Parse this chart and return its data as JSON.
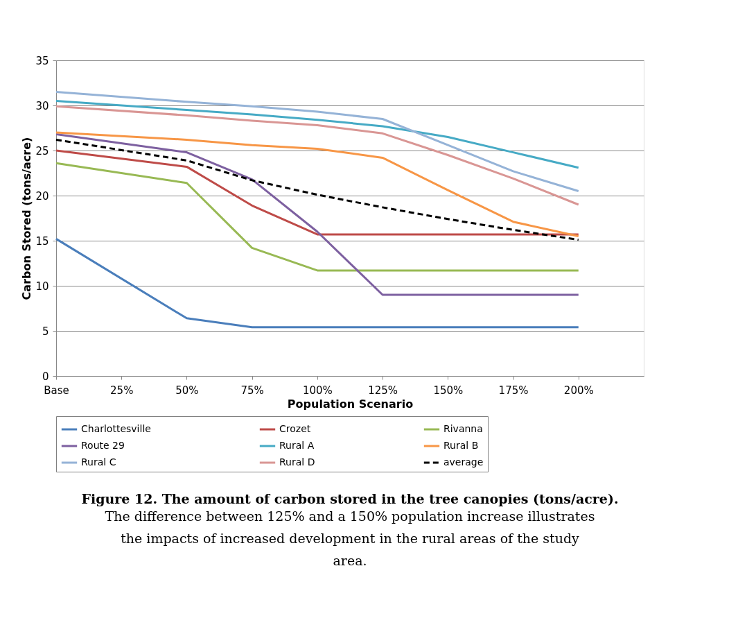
{
  "chart_data": {
    "type": "line",
    "xlabel": "Population Scenario",
    "ylabel": "Carbon Stored (tons/acre)",
    "categories": [
      "Base",
      "25%",
      "50%",
      "75%",
      "100%",
      "125%",
      "150%",
      "175%",
      "200%"
    ],
    "ylim": [
      0,
      35
    ],
    "yticks": [
      0,
      5,
      10,
      15,
      20,
      25,
      30,
      35
    ],
    "grid": "y",
    "legend": "bottom",
    "line_style": "solid",
    "marker": "none",
    "series": [
      {
        "name": "Charlottesville",
        "color": "#4a7ebb",
        "values": [
          15.2,
          null,
          6.4,
          5.4,
          5.4,
          5.4,
          5.4,
          5.4,
          5.4
        ]
      },
      {
        "name": "Crozet",
        "color": "#be4b48",
        "values": [
          25.0,
          null,
          23.2,
          18.9,
          15.7,
          15.7,
          15.7,
          15.7,
          15.7
        ]
      },
      {
        "name": "Rivanna",
        "color": "#98b954",
        "values": [
          23.6,
          null,
          21.4,
          14.2,
          11.7,
          11.7,
          11.7,
          11.7,
          11.7
        ]
      },
      {
        "name": "Route 29",
        "color": "#7d60a0",
        "values": [
          26.8,
          null,
          24.8,
          21.8,
          16.0,
          9.0,
          9.0,
          9.0,
          9.0
        ]
      },
      {
        "name": "Rural A",
        "color": "#46aac5",
        "values": [
          30.5,
          null,
          29.5,
          29.0,
          28.4,
          27.7,
          26.5,
          24.8,
          23.1
        ]
      },
      {
        "name": "Rural B",
        "color": "#f79646",
        "values": [
          27.0,
          null,
          26.2,
          25.6,
          25.2,
          24.2,
          20.6,
          17.1,
          15.5
        ]
      },
      {
        "name": "Rural C",
        "color": "#95b3d7",
        "values": [
          31.5,
          null,
          30.4,
          29.9,
          29.3,
          28.5,
          25.6,
          22.7,
          20.5
        ]
      },
      {
        "name": "Rural D",
        "color": "#d99694",
        "values": [
          29.9,
          null,
          28.9,
          28.3,
          27.8,
          26.9,
          24.5,
          21.9,
          19.0
        ]
      },
      {
        "name": "average",
        "color": "#000000",
        "line_style": "dashed",
        "values": [
          26.2,
          null,
          23.9,
          21.7,
          20.1,
          18.7,
          17.4,
          16.2,
          15.1
        ]
      }
    ],
    "annotations": [
      "Figure 12. The amount of carbon stored in the tree canopies (tons/acre).",
      "The difference between 125% and a 150% population increase illustrates the impacts of increased development in the rural areas of the study area."
    ]
  }
}
